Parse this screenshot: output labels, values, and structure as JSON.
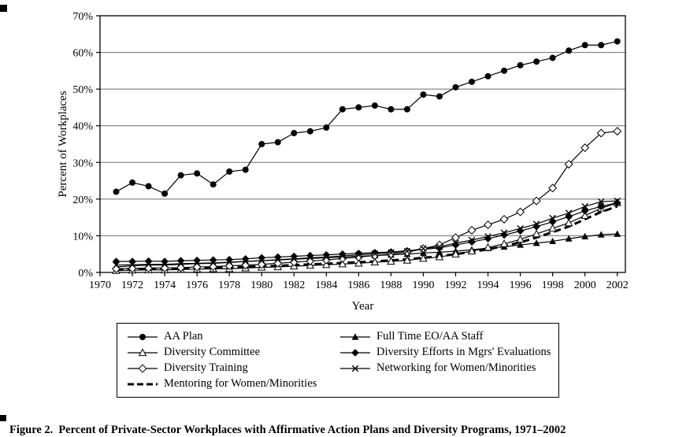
{
  "figure": {
    "caption_label": "Figure 2.",
    "caption_text": "Percent of Private-Sector Workplaces with Affirmative Action Plans and Diversity Programs, 1971–2002"
  },
  "chart_data": {
    "type": "line",
    "title": "",
    "xlabel": "Year",
    "ylabel": "Percent of Workplaces",
    "xlim": [
      1970,
      2002.5
    ],
    "ylim": [
      0,
      70
    ],
    "x_ticks": [
      1970,
      1972,
      1974,
      1976,
      1978,
      1980,
      1982,
      1984,
      1986,
      1988,
      1990,
      1992,
      1994,
      1996,
      1998,
      2000,
      2002
    ],
    "y_ticks": [
      0,
      10,
      20,
      30,
      40,
      50,
      60,
      70
    ],
    "y_tick_suffix": "%",
    "grid": "horizontal",
    "legend_position": "bottom",
    "x": [
      1971,
      1972,
      1973,
      1974,
      1975,
      1976,
      1977,
      1978,
      1979,
      1980,
      1981,
      1982,
      1983,
      1984,
      1985,
      1986,
      1987,
      1988,
      1989,
      1990,
      1991,
      1992,
      1993,
      1994,
      1995,
      1996,
      1997,
      1998,
      1999,
      2000,
      2001,
      2002
    ],
    "series": [
      {
        "name": "AA Plan",
        "marker": "circle-filled",
        "line": "solid",
        "values": [
          22,
          24.5,
          23.5,
          21.5,
          26.5,
          27,
          24,
          27.5,
          28,
          35,
          35.5,
          38,
          38.5,
          39.5,
          44.5,
          45,
          45.5,
          44.5,
          44.5,
          48.5,
          48,
          50.5,
          52,
          53.5,
          55,
          56.5,
          57.5,
          58.5,
          60.5,
          62,
          62,
          63
        ]
      },
      {
        "name": "Full Time EO/AA Staff",
        "marker": "triangle-filled",
        "line": "solid",
        "values": [
          1.5,
          1.8,
          2,
          2,
          2.2,
          2.4,
          2.5,
          2.7,
          3,
          3.2,
          3.4,
          3.6,
          3.8,
          4,
          4.2,
          4.4,
          4.6,
          4.8,
          5,
          5.3,
          5.5,
          5.8,
          6.2,
          6.6,
          7,
          7.5,
          8,
          8.5,
          9.2,
          9.8,
          10.3,
          10.5
        ]
      },
      {
        "name": "Diversity Committee",
        "marker": "triangle-open",
        "line": "solid",
        "values": [
          0.5,
          0.6,
          0.7,
          0.7,
          0.8,
          0.9,
          1,
          1,
          1.2,
          1.4,
          1.5,
          1.7,
          1.9,
          2.1,
          2.3,
          2.5,
          2.8,
          3,
          3.3,
          3.8,
          4.2,
          5,
          5.8,
          6.8,
          7.8,
          9,
          10.5,
          12,
          13.5,
          15.5,
          17.5,
          19
        ]
      },
      {
        "name": "Diversity Efforts in Mgrs' Evaluations",
        "marker": "diamond-filled",
        "line": "solid",
        "values": [
          3,
          3,
          3.1,
          3,
          3.2,
          3.3,
          3.4,
          3.5,
          3.7,
          4,
          4.2,
          4.4,
          4.6,
          4.8,
          5,
          5.2,
          5.4,
          5.6,
          5.9,
          6.3,
          6.7,
          7.5,
          8.3,
          9.2,
          10.2,
          11.3,
          12.5,
          13.8,
          15.2,
          16.8,
          18,
          19
        ]
      },
      {
        "name": "Diversity Training",
        "marker": "diamond-open",
        "line": "solid",
        "values": [
          1,
          1.1,
          1.2,
          1.2,
          1.3,
          1.5,
          1.6,
          1.8,
          2,
          2.2,
          2.5,
          2.8,
          3.1,
          3.4,
          3.8,
          4.2,
          4.6,
          5,
          5.5,
          6.5,
          7.5,
          9.5,
          11.5,
          13,
          14.5,
          16.5,
          19.5,
          23,
          29.5,
          34,
          38,
          38.5
        ]
      },
      {
        "name": "Networking for Women/Minorities",
        "marker": "x-cross",
        "line": "solid",
        "values": [
          2,
          2.1,
          2.2,
          2.2,
          2.4,
          2.5,
          2.6,
          2.8,
          3,
          3.2,
          3.5,
          3.7,
          4,
          4.2,
          4.5,
          4.8,
          5.1,
          5.4,
          5.8,
          6.5,
          7,
          8,
          8.8,
          9.8,
          10.8,
          12,
          13.2,
          14.8,
          16.2,
          18,
          19.3,
          19.5
        ]
      },
      {
        "name": "Mentoring for Women/Minorities",
        "marker": "none",
        "line": "dashed-bold",
        "values": [
          0.8,
          0.9,
          1,
          1,
          1.1,
          1.2,
          1.3,
          1.4,
          1.5,
          1.7,
          1.8,
          2,
          2.2,
          2.4,
          2.6,
          2.8,
          3,
          3.3,
          3.6,
          4,
          4.4,
          5,
          5.6,
          6.3,
          7.2,
          8.2,
          9.5,
          11,
          12.5,
          14.5,
          16.5,
          18
        ]
      }
    ]
  }
}
